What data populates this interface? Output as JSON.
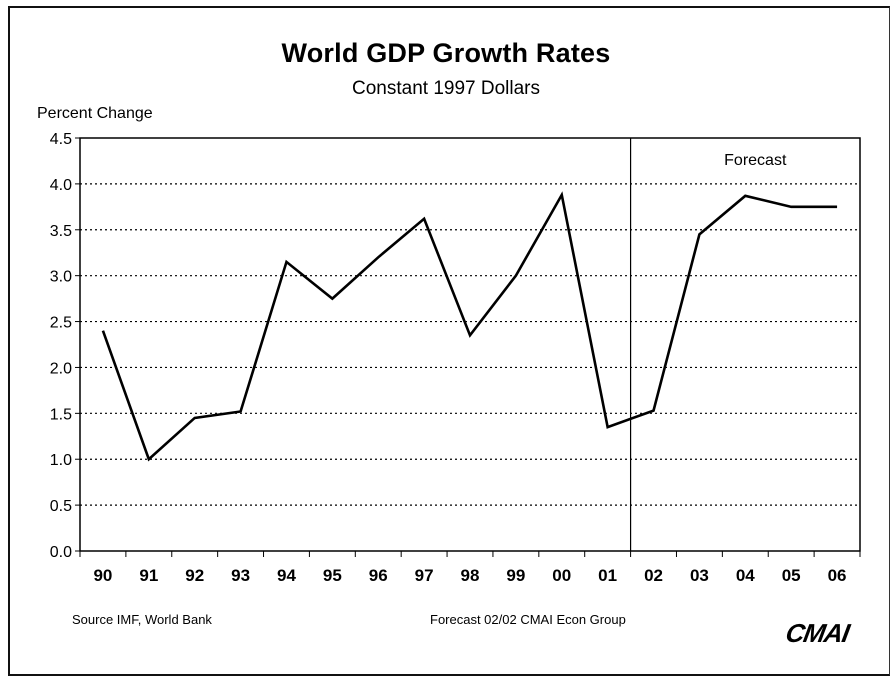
{
  "chart_data": {
    "type": "line",
    "title": "World GDP Growth Rates",
    "subtitle": "Constant 1997 Dollars",
    "ylabel": "Percent Change",
    "xlabel": "",
    "categories": [
      "90",
      "91",
      "92",
      "93",
      "94",
      "95",
      "96",
      "97",
      "98",
      "99",
      "00",
      "01",
      "02",
      "03",
      "04",
      "05",
      "06"
    ],
    "series": [
      {
        "values": [
          2.4,
          1.0,
          1.45,
          1.52,
          3.15,
          2.75,
          3.2,
          3.62,
          2.35,
          3.0,
          3.88,
          1.35,
          1.53,
          3.45,
          3.87,
          3.75,
          3.75
        ]
      }
    ],
    "ylim": [
      0,
      4.5
    ],
    "yticks": [
      "0.0",
      "0.5",
      "1.0",
      "1.5",
      "2.0",
      "2.5",
      "3.0",
      "3.5",
      "4.0",
      "4.5"
    ],
    "grid": true,
    "forecast_divider_after": "01",
    "annotation": "Forecast",
    "source": "Source IMF, World Bank",
    "note": "Forecast 02/02  CMAI Econ Group",
    "logo_text": "CMAI",
    "colors": {
      "line": "#000000",
      "grid": "#000000"
    }
  }
}
